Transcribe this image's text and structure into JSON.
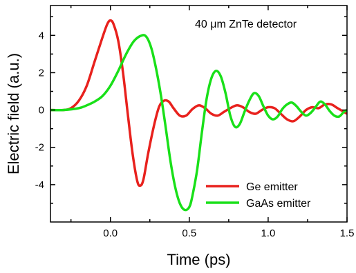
{
  "chart_data": {
    "type": "line",
    "title": "",
    "annotation": "40 μm ZnTe detector",
    "xlabel": "Time (ps)",
    "ylabel": "Electric field (a.u.)",
    "xlim": [
      -0.38,
      1.5
    ],
    "ylim": [
      -6.0,
      5.6
    ],
    "xticks": [
      0.0,
      0.5,
      1.0,
      1.5
    ],
    "xtick_labels": [
      "0.0",
      "0.5",
      "1.0",
      "1.5"
    ],
    "yticks": [
      -4,
      -2,
      0,
      2,
      4
    ],
    "ytick_labels": [
      "-4",
      "-2",
      "0",
      "2",
      "4"
    ],
    "legend_position": "bottom-right",
    "grid": false,
    "series": [
      {
        "name": "Ge emitter",
        "color": "#e8211d",
        "x": [
          -0.38,
          -0.3,
          -0.25,
          -0.2,
          -0.15,
          -0.1,
          -0.05,
          -0.02,
          0.0,
          0.02,
          0.05,
          0.08,
          0.11,
          0.14,
          0.17,
          0.19,
          0.21,
          0.24,
          0.28,
          0.31,
          0.34,
          0.37,
          0.4,
          0.44,
          0.48,
          0.52,
          0.56,
          0.6,
          0.64,
          0.68,
          0.72,
          0.76,
          0.8,
          0.84,
          0.88,
          0.92,
          0.96,
          1.0,
          1.04,
          1.08,
          1.12,
          1.16,
          1.2,
          1.24,
          1.28,
          1.32,
          1.36,
          1.4,
          1.44,
          1.48,
          1.5
        ],
        "y": [
          0.0,
          0.0,
          0.1,
          0.5,
          1.3,
          2.6,
          3.9,
          4.6,
          4.8,
          4.6,
          3.7,
          2.0,
          -0.2,
          -2.3,
          -3.8,
          -4.05,
          -3.7,
          -2.3,
          -0.7,
          0.2,
          0.5,
          0.45,
          0.1,
          -0.3,
          -0.3,
          0.05,
          0.25,
          0.1,
          -0.2,
          -0.3,
          -0.1,
          0.1,
          0.25,
          0.15,
          -0.1,
          -0.2,
          0.0,
          0.15,
          0.1,
          -0.2,
          -0.5,
          -0.6,
          -0.35,
          0.0,
          0.15,
          0.1,
          0.3,
          0.3,
          0.1,
          -0.1,
          -0.2
        ]
      },
      {
        "name": "GaAs emitter",
        "color": "#19e019",
        "x": [
          -0.38,
          -0.3,
          -0.2,
          -0.15,
          -0.1,
          -0.05,
          0.0,
          0.05,
          0.1,
          0.15,
          0.2,
          0.23,
          0.26,
          0.29,
          0.32,
          0.35,
          0.38,
          0.41,
          0.44,
          0.47,
          0.5,
          0.52,
          0.55,
          0.58,
          0.61,
          0.64,
          0.67,
          0.7,
          0.73,
          0.76,
          0.79,
          0.82,
          0.85,
          0.88,
          0.91,
          0.94,
          0.97,
          1.0,
          1.03,
          1.06,
          1.09,
          1.12,
          1.15,
          1.18,
          1.21,
          1.24,
          1.27,
          1.3,
          1.33,
          1.36,
          1.39,
          1.42,
          1.45,
          1.48,
          1.5
        ],
        "y": [
          0.0,
          0.0,
          0.1,
          0.25,
          0.45,
          0.75,
          1.3,
          2.1,
          3.0,
          3.7,
          4.0,
          3.9,
          3.3,
          2.2,
          0.8,
          -0.9,
          -2.7,
          -4.1,
          -5.0,
          -5.35,
          -5.2,
          -4.6,
          -3.2,
          -1.2,
          0.6,
          1.7,
          2.1,
          1.8,
          0.9,
          -0.3,
          -0.9,
          -0.75,
          -0.1,
          0.5,
          0.9,
          0.75,
          0.2,
          -0.3,
          -0.5,
          -0.35,
          0.05,
          0.3,
          0.4,
          0.2,
          -0.1,
          -0.3,
          -0.15,
          0.15,
          0.45,
          0.3,
          -0.05,
          -0.3,
          -0.35,
          -0.1,
          0.0
        ]
      }
    ]
  }
}
